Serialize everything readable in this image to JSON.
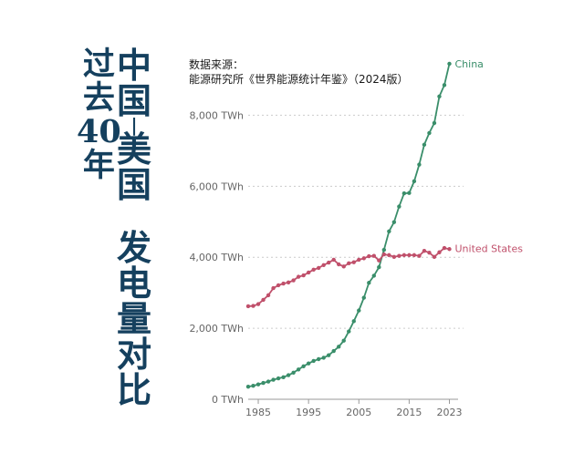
{
  "title": {
    "column1": "过去40年",
    "column2": [
      "中国-美国",
      "发电量对比"
    ]
  },
  "source": {
    "line1": "数据来源：",
    "line2": "能源研究所《世界能源统计年鉴》（2024版）"
  },
  "colors": {
    "china": "#3a8e6a",
    "us": "#c0506b",
    "title": "#15405e",
    "grid": "#cccccc",
    "axis_text": "#666666"
  },
  "chart_data": {
    "type": "line",
    "title": "",
    "xlabel": "",
    "ylabel": "",
    "y_unit": "TWh",
    "xlim": [
      1983,
      2024
    ],
    "ylim": [
      0,
      9500
    ],
    "x_ticks": [
      "1985",
      "1995",
      "2005",
      "2015",
      "2023"
    ],
    "y_ticks": [
      "0 TWh",
      "2,000 TWh",
      "4,000 TWh",
      "6,000 TWh",
      "8,000 TWh"
    ],
    "grid": true,
    "legend_placement": "line-end labels",
    "x": [
      1983,
      1984,
      1985,
      1986,
      1987,
      1988,
      1989,
      1990,
      1991,
      1992,
      1993,
      1994,
      1995,
      1996,
      1997,
      1998,
      1999,
      2000,
      2001,
      2002,
      2003,
      2004,
      2005,
      2006,
      2007,
      2008,
      2009,
      2010,
      2011,
      2012,
      2013,
      2014,
      2015,
      2016,
      2017,
      2018,
      2019,
      2020,
      2021,
      2022,
      2023
    ],
    "series": [
      {
        "name": "China",
        "values": [
          355,
          380,
          420,
          460,
          500,
          550,
          590,
          620,
          680,
          750,
          840,
          930,
          1010,
          1080,
          1130,
          1170,
          1240,
          1360,
          1480,
          1650,
          1910,
          2200,
          2500,
          2860,
          3280,
          3480,
          3720,
          4210,
          4730,
          4990,
          5430,
          5800,
          5810,
          6140,
          6610,
          7170,
          7500,
          7780,
          8530,
          8850,
          9450
        ]
      },
      {
        "name": "United States",
        "values": [
          2620,
          2630,
          2680,
          2800,
          2930,
          3130,
          3210,
          3260,
          3290,
          3350,
          3450,
          3490,
          3570,
          3650,
          3700,
          3780,
          3850,
          3930,
          3800,
          3740,
          3830,
          3860,
          3930,
          3970,
          4030,
          4040,
          3910,
          4080,
          4060,
          4010,
          4040,
          4060,
          4060,
          4060,
          4040,
          4180,
          4130,
          4010,
          4140,
          4260,
          4230
        ]
      }
    ]
  }
}
